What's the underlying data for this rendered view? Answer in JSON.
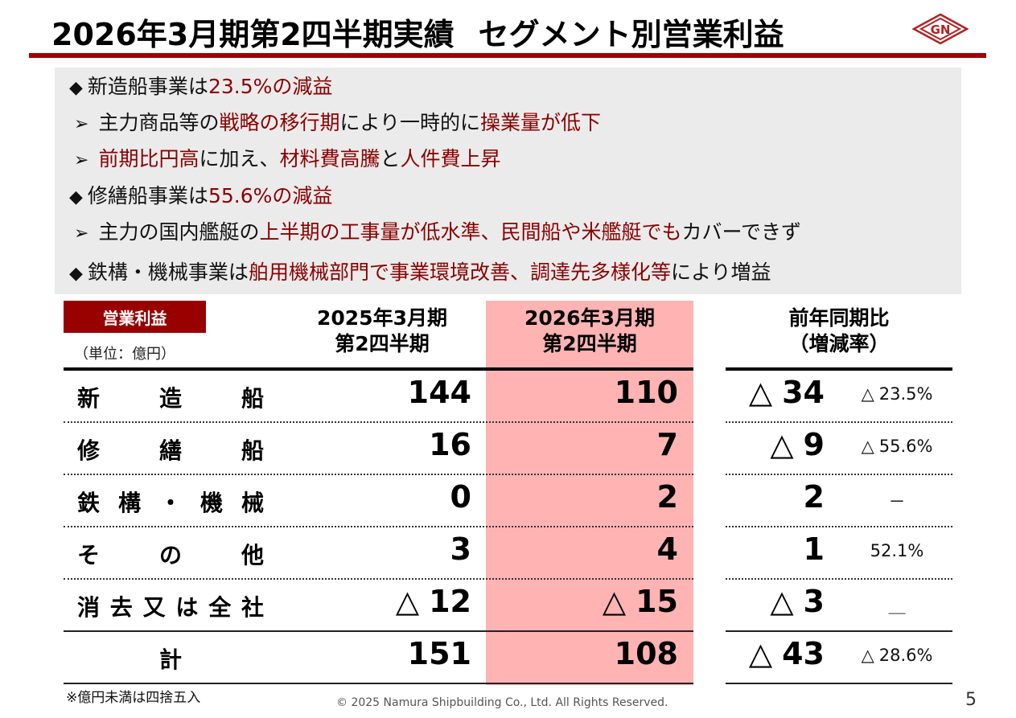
{
  "header": {
    "title_part1": "2026年3月期第2四半期実績",
    "title_part2": "セグメント別営業利益",
    "logo_text": "GN",
    "accent_color": "#a00000"
  },
  "summary": {
    "lines": [
      {
        "marker": "◆",
        "segments": [
          {
            "text": "新造船事業は",
            "hl": false
          },
          {
            "text": "23.5%の減益",
            "hl": true
          }
        ]
      },
      {
        "marker": "➢",
        "segments": [
          {
            "text": "主力商品等の",
            "hl": false
          },
          {
            "text": "戦略の移行期",
            "hl": true
          },
          {
            "text": "により一時的に",
            "hl": false
          },
          {
            "text": "操業量が低下",
            "hl": true
          }
        ]
      },
      {
        "marker": "➢",
        "segments": [
          {
            "text": "前期比円高",
            "hl": true
          },
          {
            "text": "に加え、",
            "hl": false
          },
          {
            "text": "材料費高騰",
            "hl": true
          },
          {
            "text": "と",
            "hl": false
          },
          {
            "text": "人件費上昇",
            "hl": true
          }
        ]
      },
      {
        "marker": "◆",
        "segments": [
          {
            "text": "修繕船事業は",
            "hl": false
          },
          {
            "text": "55.6%の減益",
            "hl": true
          }
        ]
      },
      {
        "marker": "➢",
        "segments": [
          {
            "text": "主力の国内艦艇の",
            "hl": false
          },
          {
            "text": "上半期の工事量が低水準、民間船や米艦艇でも",
            "hl": true
          },
          {
            "text": "カバーできず",
            "hl": false
          }
        ]
      },
      {
        "marker": "◆",
        "segments": [
          {
            "text": "鉄構・機械事業は",
            "hl": false
          },
          {
            "text": "舶用機械部門で事業環境改善、調達先多様化等",
            "hl": true
          },
          {
            "text": "により増益",
            "hl": false
          }
        ]
      }
    ],
    "highlight_color": "#8b0000"
  },
  "table": {
    "label": "営業利益",
    "unit": "（単位：億円）",
    "columns": {
      "prev": {
        "line1": "2025年3月期",
        "line2": "第2四半期"
      },
      "curr": {
        "line1": "2026年3月期",
        "line2": "第2四半期"
      },
      "yoy": {
        "line1": "前年同期比",
        "line2": "（増減率）"
      }
    },
    "rows": [
      {
        "label_chars": [
          "新",
          "造",
          "船"
        ],
        "prev": "144",
        "prev_neg": false,
        "curr": "110",
        "curr_neg": false,
        "diff": "34",
        "diff_neg": true,
        "rate": "23.5%",
        "rate_neg": true
      },
      {
        "label_chars": [
          "修",
          "繕",
          "船"
        ],
        "prev": "16",
        "prev_neg": false,
        "curr": "7",
        "curr_neg": false,
        "diff": "9",
        "diff_neg": true,
        "rate": "55.6%",
        "rate_neg": true
      },
      {
        "label_chars": [
          "鉄",
          "構",
          "・",
          "機",
          "械"
        ],
        "prev": "0",
        "prev_neg": false,
        "curr": "2",
        "curr_neg": false,
        "diff": "2",
        "diff_neg": false,
        "rate": "－",
        "rate_neg": false
      },
      {
        "label_chars": [
          "そ",
          "の",
          "他"
        ],
        "prev": "3",
        "prev_neg": false,
        "curr": "4",
        "curr_neg": false,
        "diff": "1",
        "diff_neg": false,
        "rate": "52.1%",
        "rate_neg": false
      },
      {
        "label_chars": [
          "消",
          "去",
          "又",
          "は",
          "全",
          "社"
        ],
        "prev": "12",
        "prev_neg": true,
        "curr": "15",
        "curr_neg": true,
        "diff": "3",
        "diff_neg": true,
        "rate": "＿",
        "rate_neg": false
      },
      {
        "label_chars": [
          "計"
        ],
        "prev": "151",
        "prev_neg": false,
        "curr": "108",
        "curr_neg": false,
        "diff": "43",
        "diff_neg": true,
        "rate": "28.6%",
        "rate_neg": true
      }
    ],
    "negative_marker": "△",
    "highlight_col_color": "#ffb3b3"
  },
  "footer": {
    "note": "※億円未満は四捨五入",
    "copyright": "© 2025 Namura Shipbuilding Co., Ltd. All Rights Reserved.",
    "page_number": "5"
  }
}
